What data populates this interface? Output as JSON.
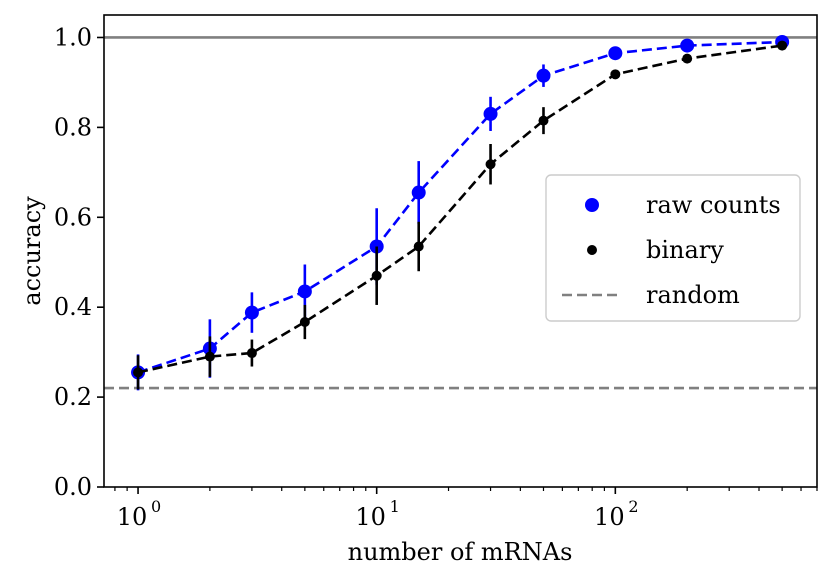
{
  "chart_data": {
    "type": "line",
    "xlabel": "number of mRNAs",
    "ylabel": "accuracy",
    "xscale": "log",
    "xlim": [
      0.72,
      700
    ],
    "ylim": [
      0.0,
      1.05
    ],
    "grid": false,
    "legend_position": "center-right",
    "x_ticks": [
      {
        "value": 1,
        "base": "10",
        "exp": "0"
      },
      {
        "value": 10,
        "base": "10",
        "exp": "1"
      },
      {
        "value": 100,
        "base": "10",
        "exp": "2"
      }
    ],
    "y_ticks": [
      {
        "value": 0.0,
        "label": "0.0"
      },
      {
        "value": 0.2,
        "label": "0.2"
      },
      {
        "value": 0.4,
        "label": "0.4"
      },
      {
        "value": 0.6,
        "label": "0.6"
      },
      {
        "value": 0.8,
        "label": "0.8"
      },
      {
        "value": 1.0,
        "label": "1.0"
      }
    ],
    "x": [
      1,
      2,
      3,
      5,
      10,
      15,
      30,
      50,
      100,
      200,
      500
    ],
    "series": [
      {
        "name": "raw counts",
        "color": "#0000ff",
        "marker": "large-circle",
        "linestyle": "dashed",
        "values": [
          0.255,
          0.308,
          0.388,
          0.435,
          0.535,
          0.655,
          0.83,
          0.915,
          0.965,
          0.982,
          0.99
        ],
        "errors": [
          0.04,
          0.065,
          0.045,
          0.06,
          0.085,
          0.07,
          0.038,
          0.025,
          0.01,
          0.006,
          0.004
        ]
      },
      {
        "name": "binary",
        "color": "#000000",
        "marker": "small-circle",
        "linestyle": "dashed",
        "values": [
          0.255,
          0.29,
          0.298,
          0.367,
          0.47,
          0.535,
          0.718,
          0.815,
          0.918,
          0.953,
          0.982
        ],
        "errors": [
          0.038,
          0.045,
          0.03,
          0.038,
          0.065,
          0.055,
          0.045,
          0.03,
          0.008,
          0.007,
          0.006
        ]
      }
    ],
    "reference_lines": [
      {
        "name": "random",
        "y": 0.22,
        "color": "#808080",
        "linestyle": "dashed",
        "in_legend": true
      },
      {
        "name": "",
        "y": 1.0,
        "color": "#808080",
        "linestyle": "solid",
        "in_legend": false
      }
    ],
    "legend": [
      {
        "label": "raw counts",
        "color": "#0000ff",
        "kind": "large-dot"
      },
      {
        "label": "binary",
        "color": "#000000",
        "kind": "small-dot"
      },
      {
        "label": "random",
        "color": "#808080",
        "kind": "dash"
      }
    ]
  }
}
